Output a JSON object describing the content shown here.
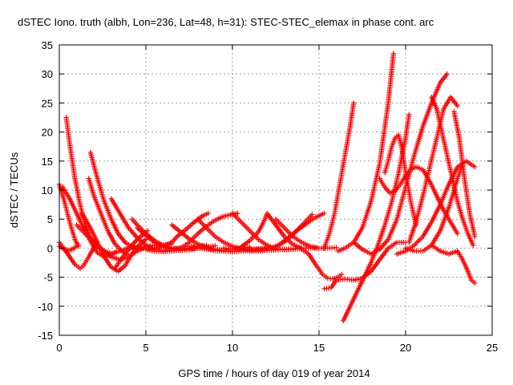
{
  "chart_data": {
    "type": "scatter",
    "title": "dSTEC Iono. truth (albh, Lon=236, Lat=48, h=31): STEC-STEC_elemax in phase cont. arc",
    "xlabel": "GPS time / hours of day 019 of year 2014",
    "ylabel": "dSTEC  / TECUs",
    "xlim": [
      0,
      25
    ],
    "ylim": [
      -15,
      35
    ],
    "xticks": [
      0,
      5,
      10,
      15,
      20,
      25
    ],
    "yticks": [
      -15,
      -10,
      -5,
      0,
      5,
      10,
      15,
      20,
      25,
      30,
      35
    ],
    "grid": true,
    "marker": "+",
    "color": "#ff0000",
    "series": [
      {
        "x": [
          0.0,
          0.3,
          0.6,
          0.9,
          1.1
        ],
        "y": [
          11.0,
          8.0,
          4.5,
          1.5,
          0.3
        ]
      },
      {
        "x": [
          0.0,
          0.3,
          0.6,
          0.9,
          1.2,
          1.4,
          1.7,
          2.0,
          2.2
        ],
        "y": [
          1.0,
          -0.2,
          -1.5,
          -2.8,
          -3.5,
          -3.0,
          -1.5,
          0.2,
          1.0
        ]
      },
      {
        "x": [
          0.0,
          0.3,
          0.6,
          0.9,
          1.1
        ],
        "y": [
          0.3,
          -0.2,
          -0.4,
          0.1,
          0.6
        ]
      },
      {
        "x": [
          0.4,
          0.6,
          0.9,
          1.2,
          1.5,
          1.8,
          2.2,
          2.6,
          3.0,
          3.4,
          3.8,
          4.2,
          4.5
        ],
        "y": [
          22.5,
          18.0,
          12.0,
          7.5,
          4.0,
          1.8,
          0.3,
          -0.5,
          -0.9,
          -0.6,
          -0.2,
          0.1,
          0.2
        ]
      },
      {
        "x": [
          0.2,
          0.6,
          1.0,
          1.4,
          1.8,
          2.2,
          2.6,
          3.0,
          3.3
        ],
        "y": [
          10.5,
          8.5,
          6.0,
          3.5,
          1.2,
          -0.8,
          -1.5,
          -1.2,
          -0.6
        ]
      },
      {
        "x": [
          1.8,
          2.2,
          2.6,
          3.0,
          3.4,
          3.8,
          4.2,
          4.6,
          5.0
        ],
        "y": [
          16.5,
          12.0,
          8.0,
          5.0,
          2.5,
          1.0,
          0.2,
          -0.1,
          0.0
        ]
      },
      {
        "x": [
          1.7,
          2.0,
          2.4,
          2.8,
          3.2,
          3.6,
          3.9
        ],
        "y": [
          12.0,
          9.0,
          6.0,
          3.0,
          0.8,
          -0.5,
          -1.0
        ]
      },
      {
        "x": [
          1.3,
          1.8,
          2.2,
          2.6,
          3.0,
          3.4,
          3.8,
          4.2,
          4.6,
          5.0
        ],
        "y": [
          6.0,
          3.5,
          1.0,
          -1.5,
          -3.3,
          -4.0,
          -3.0,
          -1.0,
          0.5,
          1.5
        ]
      },
      {
        "x": [
          1.0,
          1.5,
          2.0,
          2.5,
          3.0,
          3.5,
          4.0,
          4.5,
          5.0,
          5.5,
          6.0,
          6.5
        ],
        "y": [
          4.0,
          2.5,
          1.0,
          -0.3,
          -1.5,
          -2.0,
          -1.5,
          -0.5,
          0.3,
          0.5,
          0.6,
          0.7
        ]
      },
      {
        "x": [
          3.0,
          3.5,
          4.0,
          4.5,
          5.0,
          5.5,
          6.0,
          6.5,
          7.0
        ],
        "y": [
          8.5,
          6.0,
          3.5,
          1.8,
          0.5,
          -0.2,
          -0.4,
          -0.2,
          0.1
        ]
      },
      {
        "x": [
          4.2,
          4.5,
          5.0,
          5.5,
          6.0,
          6.5,
          7.0,
          7.5,
          8.0,
          8.5
        ],
        "y": [
          5.0,
          4.0,
          2.5,
          1.3,
          0.5,
          0.0,
          -0.2,
          0.0,
          0.3,
          0.5
        ]
      },
      {
        "x": [
          4.5,
          5.0,
          5.5,
          6.0,
          6.5,
          7.0,
          7.5,
          8.0,
          8.5,
          9.0
        ],
        "y": [
          3.5,
          2.2,
          1.0,
          0.2,
          -0.2,
          -0.4,
          -0.3,
          0.0,
          0.2,
          0.4
        ]
      },
      {
        "x": [
          3.2,
          3.6,
          4.0,
          4.4,
          4.8,
          5.1
        ],
        "y": [
          -3.5,
          -1.8,
          -0.2,
          1.2,
          2.3,
          3.0
        ]
      },
      {
        "x": [
          4.0,
          4.5,
          5.0,
          5.5,
          6.0,
          6.5,
          6.8,
          7.3,
          7.8,
          8.3,
          8.6
        ],
        "y": [
          0.2,
          0.0,
          -0.1,
          0.0,
          0.3,
          1.0,
          2.0,
          3.2,
          4.5,
          5.6,
          6.0
        ]
      },
      {
        "x": [
          5.0,
          5.5,
          6.0,
          6.5,
          7.0,
          7.5,
          8.0,
          8.5,
          9.0,
          9.5,
          10.0
        ],
        "y": [
          -0.2,
          -0.5,
          -0.6,
          -0.5,
          -0.3,
          -0.1,
          0.0,
          -0.2,
          -0.4,
          -0.5,
          -0.5
        ]
      },
      {
        "x": [
          6.5,
          7.0,
          7.5,
          8.0,
          8.5,
          9.0,
          9.5,
          10.0,
          10.5,
          11.0
        ],
        "y": [
          4.0,
          2.8,
          1.6,
          0.7,
          0.1,
          -0.2,
          -0.3,
          -0.2,
          0.0,
          0.2
        ]
      },
      {
        "x": [
          7.0,
          7.5,
          8.0,
          8.5,
          9.0,
          9.5,
          10.0,
          10.3
        ],
        "y": [
          0.0,
          1.0,
          2.5,
          3.8,
          4.8,
          5.5,
          5.8,
          6.0
        ]
      },
      {
        "x": [
          7.5,
          8.0,
          8.5,
          9.0,
          9.5,
          10.0,
          10.5,
          11.0,
          11.5,
          12.0
        ],
        "y": [
          0.3,
          0.2,
          0.0,
          -0.3,
          -0.5,
          -0.6,
          -0.5,
          -0.3,
          -0.1,
          0.0
        ]
      },
      {
        "x": [
          8.0,
          8.5,
          9.0,
          9.5,
          10.0,
          10.5,
          11.0,
          11.5
        ],
        "y": [
          5.0,
          3.5,
          2.0,
          1.0,
          0.3,
          -0.1,
          -0.2,
          -0.1
        ]
      },
      {
        "x": [
          10.0,
          10.5,
          11.0,
          11.5,
          12.0,
          12.5,
          13.0,
          13.5,
          14.0
        ],
        "y": [
          6.0,
          4.5,
          3.0,
          1.5,
          0.5,
          -0.1,
          -0.3,
          -0.2,
          0.0
        ]
      },
      {
        "x": [
          9.5,
          10.0,
          10.5,
          11.0,
          11.5,
          12.0,
          12.5,
          13.0,
          13.5,
          14.0,
          14.5,
          15.0
        ],
        "y": [
          0.0,
          -0.2,
          -0.4,
          -0.5,
          -0.5,
          -0.4,
          -0.3,
          -0.2,
          -0.1,
          0.0,
          0.0,
          0.0
        ]
      },
      {
        "x": [
          10.2,
          10.7,
          11.2,
          11.7,
          12.2,
          12.7,
          13.2,
          13.7,
          14.2,
          14.6
        ],
        "y": [
          0.0,
          -0.2,
          -0.3,
          -0.2,
          0.0,
          0.5,
          1.5,
          3.0,
          4.5,
          5.8
        ]
      },
      {
        "x": [
          10.5,
          11.0,
          11.5,
          11.8,
          12.0,
          12.5,
          13.0,
          13.5,
          14.0
        ],
        "y": [
          0.2,
          1.3,
          2.8,
          4.5,
          6.0,
          4.0,
          2.0,
          0.6,
          0.0
        ]
      },
      {
        "x": [
          12.5,
          13.0,
          13.5,
          14.0,
          14.5,
          15.0,
          15.5,
          16.0
        ],
        "y": [
          5.0,
          3.5,
          2.0,
          1.0,
          0.3,
          0.0,
          0.0,
          0.1
        ]
      },
      {
        "x": [
          12.3,
          12.8,
          13.3,
          13.8,
          14.3,
          14.8,
          15.3
        ],
        "y": [
          0.0,
          0.8,
          2.0,
          3.2,
          4.3,
          5.3,
          6.0
        ]
      },
      {
        "x": [
          14.0,
          14.4,
          14.8,
          15.2,
          15.5,
          15.8,
          16.1,
          16.3
        ],
        "y": [
          -0.2,
          -1.0,
          -2.8,
          -4.5,
          -5.2,
          -5.3,
          -5.0,
          -4.5
        ]
      },
      {
        "x": [
          15.3,
          15.7,
          16.0,
          16.5,
          17.0,
          17.5,
          18.0,
          18.5,
          19.0,
          19.5,
          20.0
        ],
        "y": [
          -7.0,
          -6.8,
          -5.5,
          -5.3,
          -5.5,
          -5.2,
          -4.0,
          -2.0,
          0.0,
          1.0,
          1.0
        ]
      },
      {
        "x": [
          15.3,
          15.6,
          15.9,
          16.2,
          16.5,
          16.8,
          17.0
        ],
        "y": [
          0.0,
          2.5,
          6.0,
          11.0,
          16.0,
          21.0,
          25.0
        ]
      },
      {
        "x": [
          16.1,
          16.5,
          17.0,
          17.5,
          18.0,
          18.5,
          19.0,
          19.3
        ],
        "y": [
          -0.5,
          0.0,
          1.0,
          3.5,
          8.0,
          14.5,
          25.0,
          33.5
        ]
      },
      {
        "x": [
          16.4,
          16.8,
          17.2,
          17.6,
          18.0,
          18.4,
          18.8,
          19.2,
          19.6,
          20.0,
          20.2
        ],
        "y": [
          -12.5,
          -10.0,
          -7.5,
          -5.0,
          -2.5,
          0.5,
          4.0,
          8.0,
          13.0,
          19.0,
          23.0
        ]
      },
      {
        "x": [
          17.0,
          17.5,
          18.0,
          18.5,
          19.0,
          19.5,
          20.0,
          20.5,
          21.0,
          21.5,
          22.0,
          22.4
        ],
        "y": [
          1.0,
          -0.2,
          -1.0,
          -0.2,
          1.5,
          5.0,
          10.5,
          16.0,
          21.0,
          25.0,
          28.5,
          30.0
        ]
      },
      {
        "x": [
          18.8,
          19.0,
          19.2,
          19.4,
          19.6,
          19.8,
          20.0,
          20.3,
          20.6
        ],
        "y": [
          13.0,
          15.0,
          17.5,
          19.0,
          19.5,
          17.0,
          13.0,
          8.0,
          4.0
        ]
      },
      {
        "x": [
          18.5,
          18.8,
          19.1,
          19.4,
          19.7,
          20.0,
          20.3,
          20.6,
          21.0,
          21.4,
          21.8,
          22.2,
          22.6,
          23.0
        ],
        "y": [
          12.0,
          10.5,
          9.5,
          9.8,
          11.0,
          12.5,
          13.5,
          14.0,
          13.5,
          11.5,
          9.0,
          6.5,
          4.5,
          2.5
        ]
      },
      {
        "x": [
          19.5,
          20.0,
          20.5,
          21.0,
          21.5,
          22.0,
          22.5,
          23.0,
          23.5,
          24.0
        ],
        "y": [
          -1.0,
          -0.5,
          0.5,
          2.0,
          4.5,
          7.5,
          11.0,
          14.0,
          15.0,
          14.0
        ]
      },
      {
        "x": [
          20.0,
          20.5,
          21.0,
          21.5,
          22.0,
          22.5,
          23.0,
          23.3
        ],
        "y": [
          0.0,
          -0.5,
          -0.5,
          0.5,
          3.0,
          7.0,
          12.0,
          14.5
        ]
      },
      {
        "x": [
          20.2,
          20.6,
          21.0,
          21.4,
          21.8,
          22.2,
          22.6,
          23.0
        ],
        "y": [
          1.0,
          4.5,
          9.0,
          14.0,
          19.0,
          24.0,
          26.0,
          24.5
        ]
      },
      {
        "x": [
          21.5,
          21.8,
          22.1,
          22.4,
          22.7,
          23.0,
          23.3,
          23.6,
          23.9
        ],
        "y": [
          26.0,
          24.0,
          20.0,
          16.0,
          12.0,
          8.0,
          5.0,
          2.5,
          0.5
        ]
      },
      {
        "x": [
          22.8,
          23.1,
          23.4,
          23.7,
          24.0
        ],
        "y": [
          23.5,
          19.0,
          12.0,
          6.0,
          2.0
        ]
      },
      {
        "x": [
          21.5,
          22.0,
          22.5,
          23.0,
          23.3,
          23.6,
          23.8,
          24.0
        ],
        "y": [
          0.5,
          -0.5,
          -1.0,
          -0.5,
          -2.0,
          -4.0,
          -5.5,
          -6.0
        ]
      }
    ]
  }
}
